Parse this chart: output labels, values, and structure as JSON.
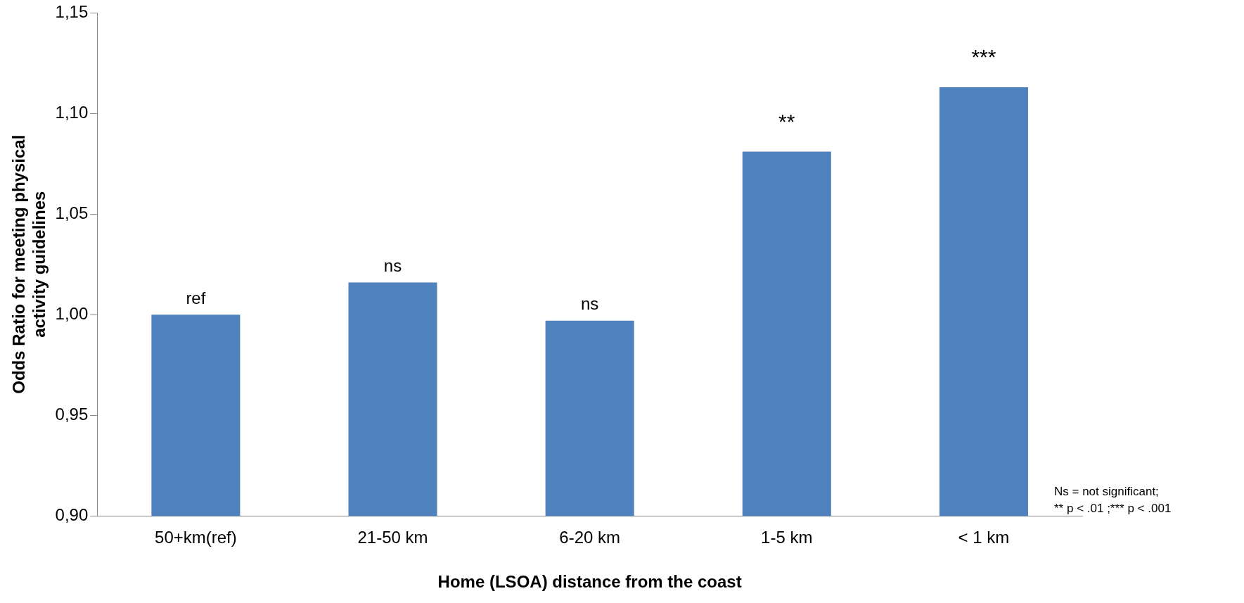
{
  "chart_data": {
    "type": "bar",
    "xlabel": "Home (LSOA) distance from the coast",
    "ylabel": "Odds Ratio for meeting physical activity guidelines",
    "categories": [
      "50+km(ref)",
      "21-50 km",
      "6-20 km",
      "1-5 km",
      "< 1 km"
    ],
    "values": [
      1.0,
      1.016,
      0.997,
      1.081,
      1.113
    ],
    "color": "#4f81bd",
    "ylim": [
      0.9,
      1.15
    ],
    "yticks": [
      {
        "value": 0.9,
        "label": "0,90"
      },
      {
        "value": 0.95,
        "label": "0,95"
      },
      {
        "value": 1.0,
        "label": "1,00"
      },
      {
        "value": 1.05,
        "label": "1,05"
      },
      {
        "value": 1.1,
        "label": "1,10"
      },
      {
        "value": 1.15,
        "label": "1,15"
      }
    ],
    "grid": false,
    "legend": false,
    "annotations": [
      {
        "text": "ref",
        "x": "50+km(ref)",
        "y": 1.0
      },
      {
        "text": "ns",
        "x": "21-50 km",
        "y": 1.016
      },
      {
        "text": "ns",
        "x": "6-20 km",
        "y": 0.997
      },
      {
        "text": "**",
        "x": "1-5 km",
        "y": 1.081
      },
      {
        "text": "***",
        "x": "< 1 km",
        "y": 1.113
      },
      "Ns = not significant;\n** p < .01 ;*** p < .001"
    ]
  }
}
